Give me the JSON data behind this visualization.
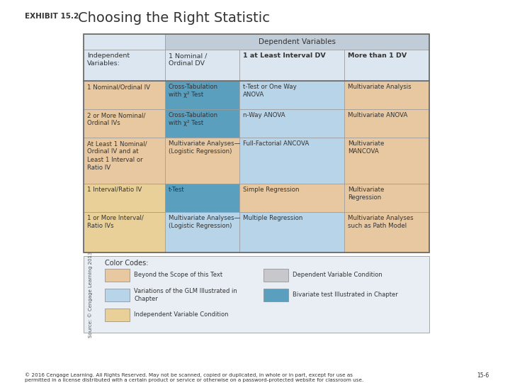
{
  "title_prefix": "EXHIBIT 15.2",
  "title_main": "Choosing the Right Statistic",
  "background_color": "#ffffff",
  "col_header_bg": "#dce6f0",
  "dep_var_header_bg": "#c0cdd8",
  "color_tan": "#e8c8a0",
  "color_blue_light": "#b8d4e8",
  "color_blue_med": "#5b9fbf",
  "color_gray_header": "#c8c8cc",
  "color_yellow": "#e8d870",
  "header_row2_texts": [
    "Independent\nVariables:",
    "1 Nominal /\nOrdinal DV",
    "1 at Least Interval DV",
    "More than 1 DV"
  ],
  "rows": [
    [
      "1 Nominal/Ordinal IV",
      "Cross-Tabulation\nwith χ² Test",
      "t-Test or One Way\nANOVA",
      "Multivariate Analysis"
    ],
    [
      "2 or More Nominal/\nOrdinal IVs",
      "Cross-Tabulation\nwith χ² Test",
      "n-Way ANOVA",
      "Multivariate ANOVA"
    ],
    [
      "At Least 1 Nominal/\nOrdinal IV and at\nLeast 1 Interval or\nRatio IV",
      "Multivariate Analyses—\n(Logistic Regression)",
      "Full-Factorial ANCOVA",
      "Multivariate\nMANCOVA"
    ],
    [
      "1 Interval/Ratio IV",
      "t-Test",
      "Simple Regression",
      "Multivariate\nRegression"
    ],
    [
      "1 or More Interval/\nRatio IVs",
      "Multivariate Analyses—\n(Logistic Regression)",
      "Multiple Regression",
      "Multivariate Analyses\nsuch as Path Model"
    ]
  ],
  "cell_colors": [
    [
      "#e8c8a0",
      "#5b9fbf",
      "#b8d4e8",
      "#e8c8a0"
    ],
    [
      "#e8c8a0",
      "#5b9fbf",
      "#b8d4e8",
      "#e8c8a0"
    ],
    [
      "#e8c8a0",
      "#e8c8a0",
      "#b8d4e8",
      "#e8c8a0"
    ],
    [
      "#e8d098",
      "#5b9fbf",
      "#e8c8a0",
      "#e8c8a0"
    ],
    [
      "#e8d098",
      "#b8d4e8",
      "#b8d4e8",
      "#e8c8a0"
    ]
  ],
  "legend_items_left": [
    {
      "color": "#e8c8a0",
      "label": "Beyond the Scope of this Text"
    },
    {
      "color": "#b8d4e8",
      "label": "Variations of the GLM Illustrated in\nChapter"
    },
    {
      "color": "#e8d098",
      "label": "Independent Variable Condition"
    }
  ],
  "legend_items_right": [
    {
      "color": "#c8c8cc",
      "label": "Dependent Variable Condition"
    },
    {
      "color": "#5b9fbf",
      "label": "Bivariate test Illustrated in Chapter"
    }
  ],
  "source_text": "Source: © Cengage Learning 2013",
  "footer_text": "© 2016 Cengage Learning. All Rights Reserved. May not be scanned, copied or duplicated, in whole or in part, except for use as\npermitted in a license distributed with a certain product or service or otherwise on a password-protected website for classroom use.",
  "footer_right": "15-6"
}
